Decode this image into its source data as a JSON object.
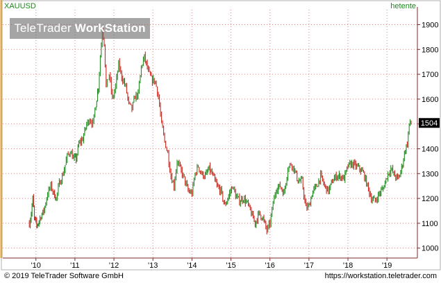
{
  "header": {
    "symbol": "XAUUSD",
    "period": "hetente",
    "brand_regular": "TeleTrader ",
    "brand_bold": "WorkStation"
  },
  "footer": {
    "copyright": "© 2019 TeleTrader Software GmbH",
    "website": "https://workstation.teletrader.com"
  },
  "colors": {
    "up": "#1f8a1f",
    "down": "#c8281e",
    "grid": "#d08a8a",
    "axis": "#7a2a2a",
    "accent": "#f0a020"
  },
  "chart_data": {
    "type": "line",
    "title": "XAUUSD",
    "interval": "hetente",
    "grid": true,
    "ylim": [
      960,
      1960
    ],
    "y_ticks": [
      1000,
      1100,
      1200,
      1300,
      1400,
      1500,
      1600,
      1700,
      1800,
      1900
    ],
    "last_price_label": "1504",
    "x_range": [
      2009.15,
      2019.78
    ],
    "x_ticks": [
      {
        "label": "'10",
        "x": 2010.0
      },
      {
        "label": "'11",
        "x": 2011.0
      },
      {
        "label": "'12",
        "x": 2012.0
      },
      {
        "label": "'13",
        "x": 2013.0
      },
      {
        "label": "'14",
        "x": 2014.0
      },
      {
        "label": "'15",
        "x": 2015.0
      },
      {
        "label": "'16",
        "x": 2016.0
      },
      {
        "label": "'17",
        "x": 2017.0
      },
      {
        "label": "'18",
        "x": 2018.0
      },
      {
        "label": "'19",
        "x": 2019.0
      }
    ],
    "series": [
      {
        "x": [
          2009.83,
          2009.88,
          2009.92,
          2009.96,
          2010.02,
          2010.08,
          2010.13,
          2010.2,
          2010.3,
          2010.38,
          2010.46,
          2010.52,
          2010.6,
          2010.7,
          2010.8,
          2010.88,
          2010.96,
          2011.03,
          2011.1,
          2011.2,
          2011.3,
          2011.38,
          2011.46,
          2011.54,
          2011.6,
          2011.65,
          2011.7,
          2011.75,
          2011.8,
          2011.88,
          2011.96,
          2012.04,
          2012.12,
          2012.2,
          2012.3,
          2012.38,
          2012.46,
          2012.54,
          2012.62,
          2012.7,
          2012.78,
          2012.88,
          2012.96,
          2013.06,
          2013.14,
          2013.22,
          2013.3,
          2013.38,
          2013.46,
          2013.54,
          2013.62,
          2013.7,
          2013.8,
          2013.9,
          2014.0,
          2014.08,
          2014.16,
          2014.24,
          2014.34,
          2014.44,
          2014.54,
          2014.64,
          2014.74,
          2014.84,
          2014.94,
          2015.04,
          2015.12,
          2015.22,
          2015.32,
          2015.42,
          2015.52,
          2015.62,
          2015.72,
          2015.82,
          2015.92,
          2016.0,
          2016.08,
          2016.16,
          2016.26,
          2016.36,
          2016.46,
          2016.54,
          2016.62,
          2016.72,
          2016.82,
          2016.92,
          2017.0,
          2017.1,
          2017.2,
          2017.3,
          2017.4,
          2017.5,
          2017.6,
          2017.7,
          2017.8,
          2017.9,
          2018.0,
          2018.1,
          2018.2,
          2018.3,
          2018.4,
          2018.5,
          2018.6,
          2018.7,
          2018.8,
          2018.9,
          2019.0,
          2019.1,
          2019.2,
          2019.3,
          2019.4,
          2019.47,
          2019.52,
          2019.57,
          2019.62
        ],
        "y": [
          1100,
          1140,
          1200,
          1120,
          1090,
          1110,
          1130,
          1150,
          1220,
          1250,
          1220,
          1200,
          1260,
          1300,
          1370,
          1390,
          1360,
          1360,
          1420,
          1440,
          1500,
          1520,
          1500,
          1580,
          1650,
          1770,
          1880,
          1830,
          1650,
          1700,
          1600,
          1650,
          1740,
          1690,
          1650,
          1580,
          1560,
          1610,
          1620,
          1730,
          1770,
          1710,
          1680,
          1670,
          1610,
          1500,
          1430,
          1380,
          1290,
          1250,
          1350,
          1320,
          1280,
          1230,
          1220,
          1300,
          1330,
          1300,
          1290,
          1320,
          1290,
          1250,
          1230,
          1170,
          1210,
          1250,
          1210,
          1190,
          1200,
          1180,
          1140,
          1100,
          1140,
          1120,
          1070,
          1100,
          1180,
          1240,
          1250,
          1220,
          1320,
          1340,
          1320,
          1270,
          1270,
          1160,
          1170,
          1230,
          1250,
          1290,
          1250,
          1230,
          1270,
          1290,
          1290,
          1280,
          1330,
          1340,
          1330,
          1320,
          1300,
          1250,
          1200,
          1190,
          1220,
          1240,
          1290,
          1320,
          1290,
          1280,
          1340,
          1400,
          1420,
          1500,
          1504
        ]
      }
    ]
  }
}
